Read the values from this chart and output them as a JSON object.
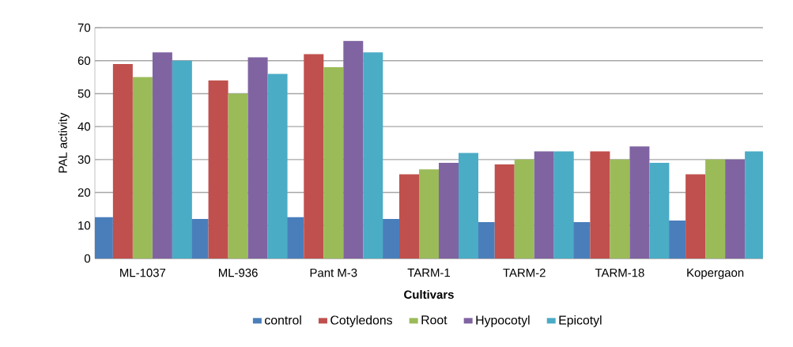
{
  "chart_data": {
    "type": "bar",
    "xlabel": "Cultivars",
    "ylabel": "PAL activity",
    "categories": [
      "ML-1037",
      "ML-936",
      "Pant M-3",
      "TARM-1",
      "TARM-2",
      "TARM-18",
      "Kopergaon"
    ],
    "series": [
      {
        "name": "control",
        "color": "#4a7ebb",
        "values": [
          12.5,
          12,
          12.5,
          12,
          11,
          11,
          11.5
        ]
      },
      {
        "name": "Cotyledons",
        "color": "#c0504d",
        "values": [
          59,
          54,
          62,
          25.5,
          28.5,
          32.5,
          25.5
        ]
      },
      {
        "name": "Root",
        "color": "#9bbb59",
        "values": [
          55,
          50,
          58,
          27,
          30,
          30,
          30
        ]
      },
      {
        "name": "Hypocotyl",
        "color": "#8064a2",
        "values": [
          62.5,
          61,
          66,
          29,
          32.5,
          34,
          30
        ]
      },
      {
        "name": "Epicotyl",
        "color": "#4bacc6",
        "values": [
          60,
          56,
          62.5,
          32,
          32.5,
          29,
          32.5
        ]
      }
    ],
    "ylim": [
      0,
      70
    ],
    "yticks": [
      0,
      10,
      20,
      30,
      40,
      50,
      60,
      70
    ],
    "grid": "y",
    "legend": "bottom"
  }
}
